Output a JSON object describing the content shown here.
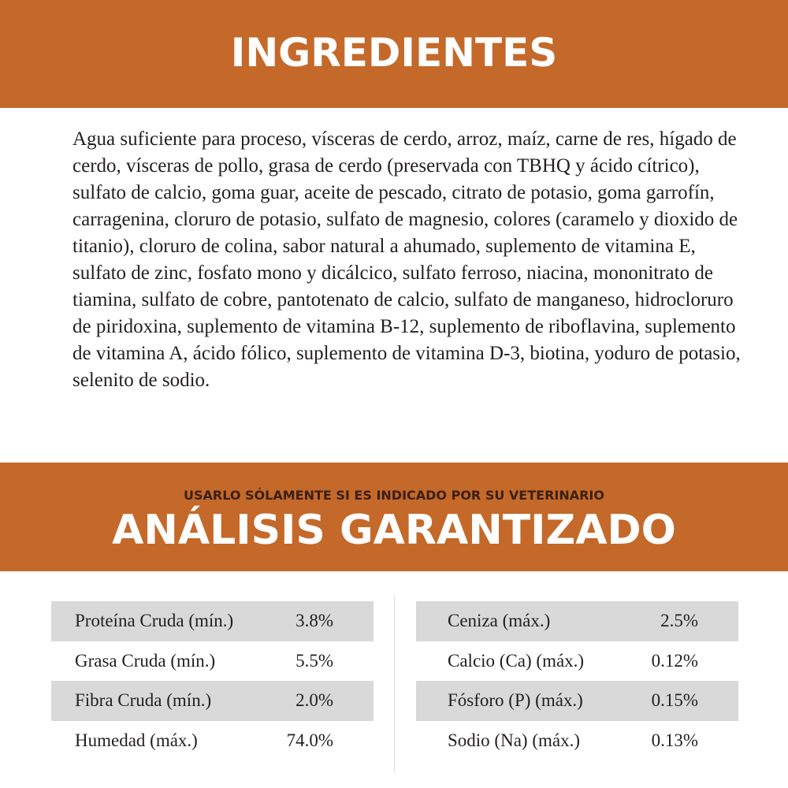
{
  "ingredients": {
    "title": "INGREDIENTES",
    "text": "Agua suficiente para proceso, vísceras de cerdo, arroz, maíz, carne de res, hígado de cerdo, vísceras de pollo, grasa de cerdo (preservada con TBHQ y ácido cítrico), sulfato de calcio, goma guar, aceite de pescado, citrato de potasio, goma garrofín, carragenina, cloruro de potasio, sulfato de magnesio, colores (caramelo y dioxido de titanio), cloruro de colina, sabor natural a ahumado, suplemento de vitamina E, sulfato de zinc, fosfato mono y dicálcico, sulfato ferroso, niacina, mononitrato de tiamina, sulfato de cobre, pantotenato de calcio, sulfato de manganeso, hidrocloruro de piridoxina, suplemento de vitamina B-12, suplemento de riboflavina, suplemento de vitamina A, ácido fólico, suplemento de vitamina D-3, biotina, yoduro de potasio, selenito de sodio."
  },
  "analysis": {
    "subtitle": "USARLO SÓLAMENTE SI ES INDICADO POR SU VETERINARIO",
    "title": "ANÁLISIS GARANTIZADO",
    "left": [
      {
        "label": "Proteína Cruda (mín.)",
        "value": "3.8%"
      },
      {
        "label": "Grasa Cruda (mín.)",
        "value": "5.5%"
      },
      {
        "label": "Fibra Cruda (mín.)",
        "value": "2.0%"
      },
      {
        "label": "Humedad (máx.)",
        "value": "74.0%"
      }
    ],
    "right": [
      {
        "label": "Ceniza (máx.)",
        "value": "2.5%"
      },
      {
        "label": "Calcio (Ca) (máx.)",
        "value": "0.12%"
      },
      {
        "label": "Fósforo (P) (máx.)",
        "value": "0.15%"
      },
      {
        "label": "Sodio (Na) (máx.)",
        "value": "0.13%"
      }
    ]
  }
}
